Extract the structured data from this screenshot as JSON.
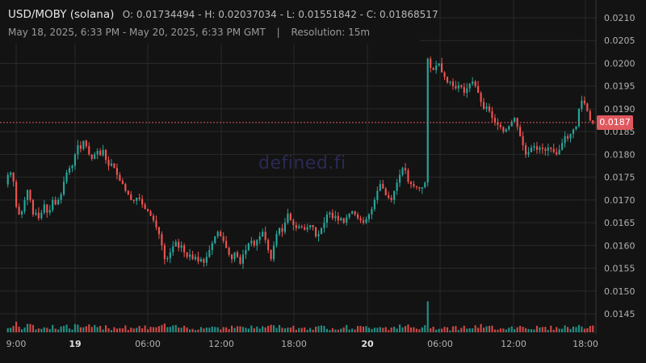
{
  "header": {
    "pair": "USD/MOBY (solana)",
    "open_label": "O:",
    "open": "0.01734494",
    "high_label": "H:",
    "high": "0.02037034",
    "low_label": "L:",
    "low": "0.01551842",
    "close_label": "C:",
    "close": "0.01868517",
    "range": "May 18, 2025, 6:33 PM - May 20, 2025, 6:33 PM GMT",
    "separator": "|",
    "resolution": "Resolution: 15m"
  },
  "watermark": "defined.fi",
  "current_price": "0.0187",
  "colors": {
    "up": "#26a69a",
    "down": "#ef5350",
    "grid": "#2a2a2a",
    "axis_text": "#b0b0b0",
    "price_line": "#e0585f",
    "background": "#131313"
  },
  "chart_data": {
    "type": "candlestick",
    "x_axis": {
      "tick_labels": [
        "9:00",
        "19",
        "06:00",
        "12:00",
        "18:00",
        "20",
        "06:00",
        "12:00",
        "18:00"
      ],
      "bold_ticks": [
        "19",
        "20"
      ]
    },
    "y_axis": {
      "range": [
        0.0141,
        0.0212
      ],
      "tick_labels": [
        "0.0210",
        "0.0205",
        "0.0200",
        "0.0195",
        "0.0190",
        "0.0185",
        "0.0180",
        "0.0175",
        "0.0170",
        "0.0165",
        "0.0160",
        "0.0155",
        "0.0150",
        "0.0145"
      ],
      "position": "right"
    },
    "grid": true,
    "current_price": 0.0187,
    "approximate_close_series": [
      0.01755,
      0.0176,
      0.0174,
      0.01685,
      0.01668,
      0.01675,
      0.017,
      0.01722,
      0.017,
      0.01668,
      0.01672,
      0.0166,
      0.01672,
      0.0169,
      0.01672,
      0.01678,
      0.017,
      0.0169,
      0.017,
      0.01712,
      0.0174,
      0.0176,
      0.0177,
      0.01775,
      0.018,
      0.0182,
      0.01812,
      0.0183,
      0.01818,
      0.018,
      0.0179,
      0.018,
      0.01808,
      0.01798,
      0.0181,
      0.01788,
      0.01775,
      0.0178,
      0.0177,
      0.01755,
      0.01742,
      0.01735,
      0.0172,
      0.01712,
      0.017,
      0.01698,
      0.01705,
      0.01702,
      0.0169,
      0.0168,
      0.01675,
      0.01665,
      0.01655,
      0.0164,
      0.01625,
      0.016,
      0.0157,
      0.01572,
      0.01585,
      0.01598,
      0.01608,
      0.01595,
      0.016,
      0.01585,
      0.01575,
      0.0158,
      0.0157,
      0.01575,
      0.01565,
      0.0157,
      0.01562,
      0.01575,
      0.0159,
      0.01605,
      0.0162,
      0.0163,
      0.0162,
      0.0161,
      0.01595,
      0.0158,
      0.0157,
      0.01585,
      0.01575,
      0.0156,
      0.0158,
      0.0159,
      0.01605,
      0.0161,
      0.016,
      0.01612,
      0.0162,
      0.0163,
      0.01612,
      0.0159,
      0.0157,
      0.016,
      0.01625,
      0.01638,
      0.0163,
      0.0165,
      0.0167,
      0.01655,
      0.01645,
      0.01638,
      0.01642,
      0.0164,
      0.01635,
      0.0164,
      0.01645,
      0.0164,
      0.0162,
      0.01625,
      0.01638,
      0.0165,
      0.01668,
      0.01672,
      0.0166,
      0.01665,
      0.01655,
      0.0166,
      0.0165,
      0.01662,
      0.0167,
      0.01675,
      0.01668,
      0.0166,
      0.01655,
      0.0165,
      0.01658,
      0.01668,
      0.0168,
      0.017,
      0.0172,
      0.01735,
      0.01725,
      0.0171,
      0.01705,
      0.017,
      0.0172,
      0.01738,
      0.01755,
      0.0177,
      0.01765,
      0.0174,
      0.01735,
      0.0173,
      0.01728,
      0.01725,
      0.01728,
      0.01738,
      0.0201,
      0.0199,
      0.01985,
      0.01995,
      0.02,
      0.0198,
      0.0197,
      0.01958,
      0.0196,
      0.0195,
      0.01945,
      0.01952,
      0.01948,
      0.01935,
      0.01945,
      0.01955,
      0.0196,
      0.0195,
      0.01935,
      0.01915,
      0.019,
      0.01905,
      0.01895,
      0.0188,
      0.0187,
      0.01865,
      0.0186,
      0.0185,
      0.01855,
      0.01862,
      0.01872,
      0.0188,
      0.0186,
      0.0184,
      0.0182,
      0.018,
      0.01805,
      0.01815,
      0.01818,
      0.0181,
      0.01815,
      0.01812,
      0.01808,
      0.01815,
      0.01812,
      0.01805,
      0.018,
      0.0181,
      0.01825,
      0.0184,
      0.01835,
      0.01845,
      0.01855,
      0.01862,
      0.019,
      0.01918,
      0.01912,
      0.01895,
      0.01875,
      0.01868
    ]
  }
}
